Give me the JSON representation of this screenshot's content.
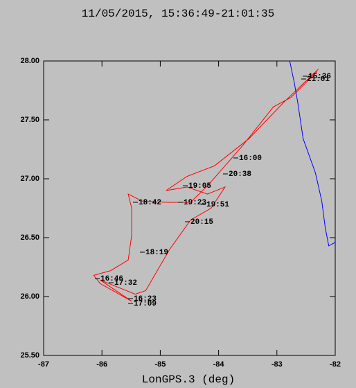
{
  "chart_data": {
    "type": "line",
    "title": "11/05/2015, 15:36:49-21:01:35",
    "x_label": "LonGPS.3 (deg)",
    "xlim": [
      -87,
      -82
    ],
    "ylim": [
      25.5,
      28
    ],
    "xticks": [
      -87,
      -86,
      -85,
      -84,
      -83,
      -82
    ],
    "yticks": [
      {
        "value": 25.5,
        "label": "25.50"
      },
      {
        "value": 26,
        "label": "26.00"
      },
      {
        "value": 26.5,
        "label": "26.50"
      },
      {
        "value": 27,
        "label": "27.00"
      },
      {
        "value": 27.5,
        "label": "27.50"
      },
      {
        "value": 28,
        "label": "28.00"
      }
    ],
    "series": [
      {
        "color": "#ff0000",
        "x": [
          -82.31,
          -82.76,
          -83.06,
          -83.59,
          -83.89,
          -84.19,
          -84.48,
          -84.9,
          -85.31,
          -85.55,
          -85.49,
          -85.49,
          -85.55,
          -85.85,
          -86.14,
          -86.03,
          -85.49,
          -86.03,
          -85.43,
          -85.25,
          -84.84,
          -84.48,
          -84.13,
          -83.89,
          -84.19,
          -84.54,
          -84.9,
          -84.54,
          -84.07,
          -83.48,
          -82.88,
          -82.29
        ],
        "values": [
          27.91,
          27.69,
          27.61,
          27.28,
          27.11,
          26.94,
          26.8,
          26.8,
          26.81,
          26.87,
          26.75,
          26.52,
          26.31,
          26.22,
          26.18,
          26.11,
          25.96,
          26.14,
          26.02,
          26.05,
          26.4,
          26.65,
          26.75,
          26.93,
          26.87,
          26.93,
          26.9,
          27.02,
          27.11,
          27.34,
          27.65,
          27.93
        ]
      },
      {
        "color": "#0000ff",
        "x": [
          -82.78,
          -82.7,
          -82.64,
          -82.55,
          -82.34,
          -82.23,
          -82.17,
          -82.11,
          -82.0
        ],
        "values": [
          28.0,
          27.81,
          27.64,
          27.34,
          27.05,
          26.81,
          26.58,
          26.43,
          26.46
        ]
      }
    ],
    "annotations": [
      "16:00",
      "20:38",
      "19:05",
      "18:42",
      "19:23",
      "19:51",
      "20:15",
      "18:19",
      "16:46",
      "17:32",
      "16:23",
      "17:09",
      "15:36",
      "21:01"
    ]
  }
}
